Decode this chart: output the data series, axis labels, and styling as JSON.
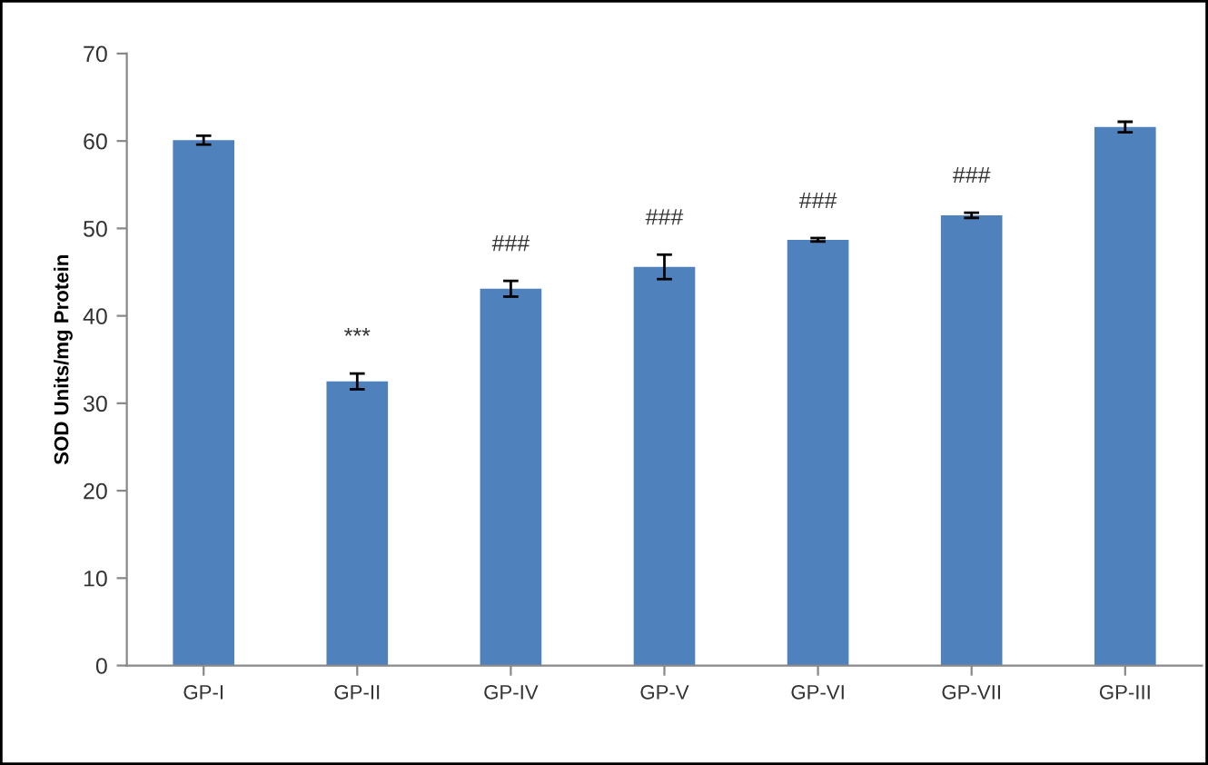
{
  "chart_data": {
    "type": "bar",
    "ylabel": "SOD Units/mg Protein",
    "categories": [
      "GP-I",
      "GP-II",
      "GP-IV",
      "GP-V",
      "GP-VI",
      "GP-VII",
      "GP-III"
    ],
    "values": [
      60.1,
      32.5,
      43.1,
      45.6,
      48.7,
      51.5,
      61.6
    ],
    "errors": [
      0.5,
      0.9,
      0.9,
      1.4,
      0.2,
      0.3,
      0.6
    ],
    "color": "#4f81bd",
    "ylim": [
      0,
      70
    ],
    "yticks": [
      0,
      10,
      20,
      30,
      40,
      50,
      60,
      70
    ],
    "grid": false,
    "value_labels": [
      null,
      "***",
      "###",
      "###",
      "###",
      "###",
      null
    ]
  }
}
